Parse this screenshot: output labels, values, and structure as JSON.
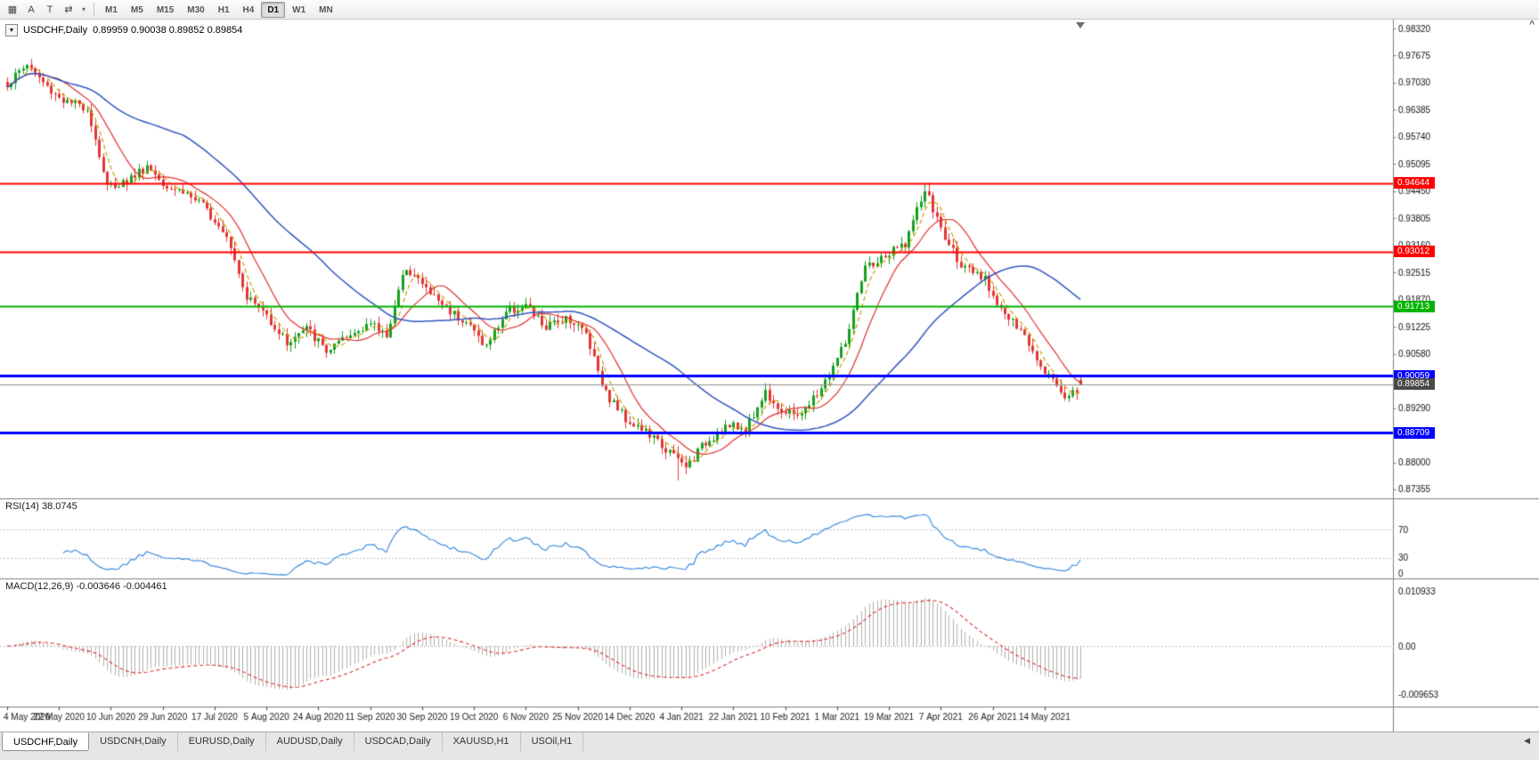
{
  "toolbar": {
    "icons": [
      {
        "name": "tick-chart-icon",
        "glyph": "▦"
      },
      {
        "name": "cursor-tool-icon",
        "glyph": "A"
      },
      {
        "name": "text-tool-icon",
        "glyph": "T"
      },
      {
        "name": "chart-shift-icon",
        "glyph": "⇄"
      },
      {
        "name": "dropdown-arrow-icon",
        "glyph": "▾"
      }
    ],
    "timeframes": [
      "M1",
      "M5",
      "M15",
      "M30",
      "H1",
      "H4",
      "D1",
      "W1",
      "MN"
    ],
    "active_timeframe": "D1"
  },
  "icons": {
    "symbol_dropdown": "▼",
    "scroll_up": "^",
    "tab_scroll_left": "◀"
  },
  "chart": {
    "title": "USDCHF,Daily",
    "ohlc": "0.89959 0.90038 0.89852 0.89854"
  },
  "price_axis": {
    "labels": [
      "0.98320",
      "0.97675",
      "0.97030",
      "0.96385",
      "0.95740",
      "0.95095",
      "0.94450",
      "0.93805",
      "0.93160",
      "0.92515",
      "0.91870",
      "0.91225",
      "0.90580",
      "0.89935",
      "0.89290",
      "0.88645",
      "0.88000",
      "0.87355"
    ]
  },
  "dates": [
    "4 May 2020",
    "22 May 2020",
    "10 Jun 2020",
    "29 Jun 2020",
    "17 Jul 2020",
    "5 Aug 2020",
    "24 Aug 2020",
    "11 Sep 2020",
    "30 Sep 2020",
    "19 Oct 2020",
    "6 Nov 2020",
    "25 Nov 2020",
    "14 Dec 2020",
    "4 Jan 2021",
    "22 Jan 2021",
    "10 Feb 2021",
    "1 Mar 2021",
    "19 Mar 2021",
    "7 Apr 2021",
    "26 Apr 2021",
    "14 May 2021"
  ],
  "rsi": {
    "text": "RSI(14) 38.0745",
    "current": 38.0745,
    "color": "#3E8EDE",
    "axis_labels": [
      "70",
      "30",
      "0"
    ],
    "axis_values": [
      70,
      30,
      0
    ]
  },
  "macd": {
    "text": "MACD(12,26,9) -0.003646 -0.004461",
    "current_macd": -0.003646,
    "current_signal": -0.004461,
    "histogram_color": "#b2b2b2",
    "signal_color": "#e03030",
    "axis_labels": [
      "0.010933",
      "0.00",
      "-0.009653"
    ],
    "axis_values": [
      0.010933,
      0,
      -0.009653
    ]
  },
  "current_price": {
    "label": "0.89854",
    "value": 0.89854,
    "bg": "#4a4a4a"
  },
  "tabs": {
    "items": [
      "USDCHF,Daily",
      "USDCNH,Daily",
      "EURUSD,Daily",
      "AUDUSD,Daily",
      "USDCAD,Daily",
      "XAUUSD,H1",
      "USOil,H1"
    ],
    "active": "USDCHF,Daily"
  },
  "colors": {
    "candle_up": "#14a11e",
    "candle_down": "#e33636",
    "separator": "#808080"
  },
  "chart_data": {
    "type": "candlestick",
    "symbol": "USDCHF",
    "timeframe": "Daily",
    "ohlc_current": {
      "open": 0.89959,
      "high": 0.90038,
      "low": 0.89852,
      "close": 0.89854
    },
    "y_axis": {
      "min": 0.87355,
      "max": 0.9832,
      "tick_step": 0.00645
    },
    "x_axis": {
      "candles_per_tick": 13
    },
    "candle_count": 270,
    "anchor_step": 5,
    "anchor_closes": [
      0.97,
      0.9748,
      0.9692,
      0.9655,
      0.9645,
      0.9455,
      0.947,
      0.9505,
      0.946,
      0.944,
      0.94,
      0.9345,
      0.9195,
      0.915,
      0.9085,
      0.9118,
      0.9065,
      0.9092,
      0.9132,
      0.9105,
      0.9268,
      0.9212,
      0.9168,
      0.9135,
      0.9075,
      0.916,
      0.9172,
      0.9118,
      0.9148,
      0.9108,
      0.8965,
      0.8905,
      0.8872,
      0.8832,
      0.8788,
      0.8848,
      0.8886,
      0.8878,
      0.8968,
      0.8912,
      0.8922,
      0.8992,
      0.9085,
      0.9262,
      0.9288,
      0.9322,
      0.9448,
      0.9332,
      0.9258,
      0.9232,
      0.9152,
      0.9098,
      0.9022,
      0.8958,
      0.8985
    ],
    "peak": {
      "index": 231,
      "high": 0.9465
    },
    "trough": {
      "index": 168,
      "low": 0.8757
    },
    "horizontal_lines": [
      {
        "value": 0.94644,
        "label": "0.94644",
        "color": "#FF0000",
        "width": 2
      },
      {
        "value": 0.93012,
        "label": "0.93012",
        "color": "#FF0000",
        "width": 2
      },
      {
        "value": 0.91713,
        "label": "0.91713",
        "color": "#00B400",
        "width": 2
      },
      {
        "value": 0.90059,
        "label": "0.90059",
        "color": "#0000FF",
        "width": 3
      },
      {
        "value": 0.88709,
        "label": "0.88709",
        "color": "#0000FF",
        "width": 3
      }
    ],
    "moving_averages": [
      {
        "period": 5,
        "color": "#C8A000",
        "style": "dash"
      },
      {
        "period": 12,
        "color": "#E03030",
        "style": "solid"
      },
      {
        "period": 45,
        "color": "#3355C0",
        "style": "solid"
      }
    ],
    "indicators": [
      {
        "name": "RSI",
        "period": 14,
        "current": 38.0745,
        "levels": [
          70,
          30,
          0
        ]
      },
      {
        "name": "MACD",
        "fast": 12,
        "slow": 26,
        "signal": 9,
        "current_macd": -0.003646,
        "current_signal": -0.004461
      }
    ]
  }
}
